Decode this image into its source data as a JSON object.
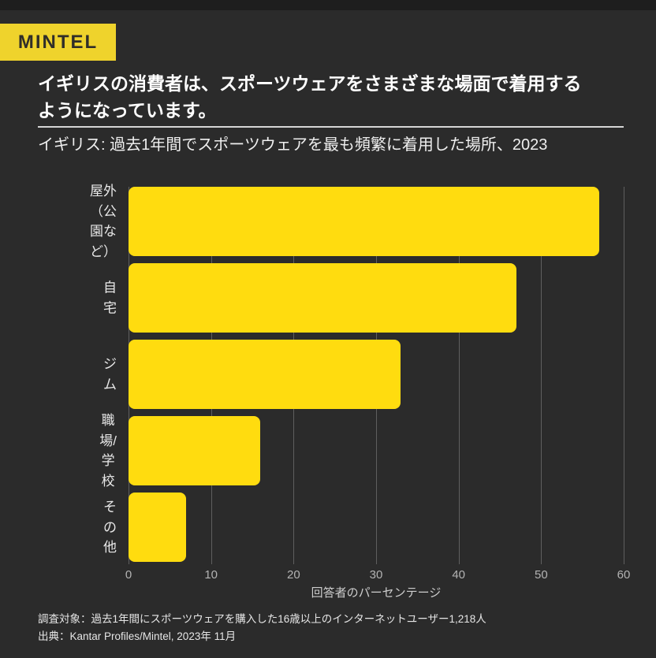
{
  "brand": {
    "logo_text": "MINTEL"
  },
  "headline": {
    "line1": "イギリスの消費者は、スポーツウェアをさまざまな場面で着用する",
    "line2": "ようになっています。"
  },
  "chart_data": {
    "type": "bar",
    "orientation": "horizontal",
    "title": "イギリス: 過去1年間でスポーツウェアを最も頻繁に着用した場所、2023",
    "categories": [
      "屋外\n（公園など）",
      "自宅",
      "ジム",
      "職場/学校",
      "その他"
    ],
    "values": [
      57,
      47,
      33,
      16,
      7
    ],
    "xlabel": "回答者のパーセンテージ",
    "xlim": [
      0,
      60
    ],
    "xticks": [
      0,
      10,
      20,
      30,
      40,
      50,
      60
    ],
    "grid": "vertical",
    "legend": false,
    "bar_color": "#FFDC0F"
  },
  "footer": {
    "line1": "調査対象：過去1年間にスポーツウェアを購入した16歳以上のインターネットユーザー1,218人",
    "line2": "出典：Kantar Profiles/Mintel, 2023年 11月"
  },
  "colors": {
    "background": "#2B2B2B",
    "top_strip": "#1E1E1E",
    "logo_bg": "#EFD32C",
    "logo_text": "#302E29",
    "bar": "#FFDC0F",
    "headline": "#FFFFFF",
    "divider": "#D6D6D6",
    "gridline": "#5F5F5F",
    "tick": "#B3B3B3"
  }
}
